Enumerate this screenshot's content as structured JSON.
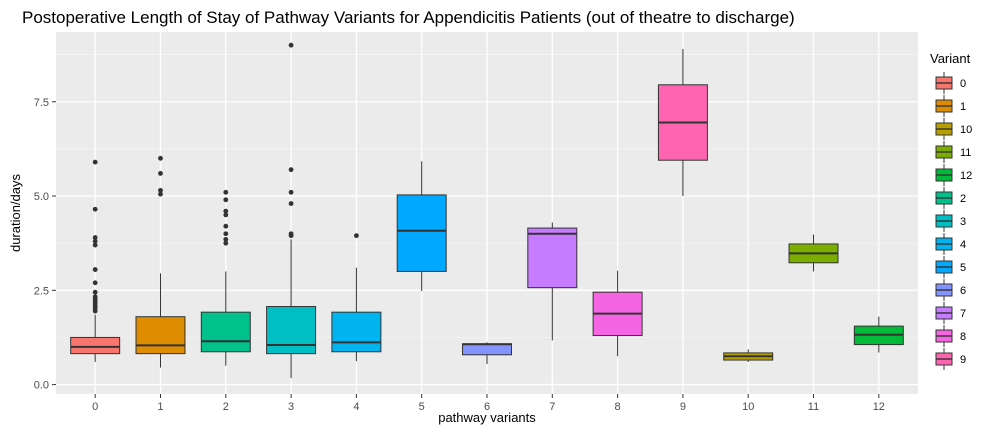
{
  "chart_data": {
    "type": "boxplot",
    "title": "Postoperative Length of Stay of Pathway Variants for Appendicitis Patients (out of theatre to discharge)",
    "xlabel": "pathway variants",
    "ylabel": "duration/days",
    "ylim": [
      -0.25,
      9.35
    ],
    "y_ticks": [
      0.0,
      2.5,
      5.0,
      7.5
    ],
    "y_tick_labels": [
      "0.0",
      "2.5",
      "5.0",
      "7.5"
    ],
    "categories": [
      "0",
      "1",
      "2",
      "3",
      "4",
      "5",
      "6",
      "7",
      "8",
      "9",
      "10",
      "11",
      "12"
    ],
    "grid": true,
    "legend_position": "right",
    "legend": {
      "title": "Variant",
      "entries": [
        {
          "label": "0",
          "color": "#F8766D"
        },
        {
          "label": "1",
          "color": "#DE8C00"
        },
        {
          "label": "10",
          "color": "#B79F00"
        },
        {
          "label": "11",
          "color": "#7CAE00"
        },
        {
          "label": "12",
          "color": "#00BA38"
        },
        {
          "label": "2",
          "color": "#00C08B"
        },
        {
          "label": "3",
          "color": "#00BFC4"
        },
        {
          "label": "4",
          "color": "#00B4F0"
        },
        {
          "label": "5",
          "color": "#00A9FF"
        },
        {
          "label": "6",
          "color": "#8494FF"
        },
        {
          "label": "7",
          "color": "#C77CFF"
        },
        {
          "label": "8",
          "color": "#F564E3"
        },
        {
          "label": "9",
          "color": "#FF64B0"
        }
      ]
    },
    "boxes": [
      {
        "variant": "0",
        "color": "#F8766D",
        "min": 0.6,
        "q1": 0.82,
        "median": 1.0,
        "q3": 1.25,
        "max": 1.85,
        "outliers": [
          1.95,
          2.02,
          2.08,
          2.14,
          2.2,
          2.27,
          2.33,
          2.45,
          2.7,
          3.05,
          3.7,
          3.8,
          3.9,
          4.65,
          5.9
        ]
      },
      {
        "variant": "1",
        "color": "#DE8C00",
        "min": 0.45,
        "q1": 0.82,
        "median": 1.04,
        "q3": 1.8,
        "max": 2.95,
        "outliers": [
          5.05,
          5.15,
          5.6,
          6.0
        ]
      },
      {
        "variant": "2",
        "color": "#00C08B",
        "min": 0.5,
        "q1": 0.87,
        "median": 1.15,
        "q3": 1.92,
        "max": 3.0,
        "outliers": [
          3.75,
          3.85,
          4.0,
          4.2,
          4.5,
          4.6,
          4.9,
          5.1
        ]
      },
      {
        "variant": "3",
        "color": "#00BFC4",
        "min": 0.17,
        "q1": 0.82,
        "median": 1.05,
        "q3": 2.07,
        "max": 3.85,
        "outliers": [
          3.95,
          4.0,
          4.8,
          5.1,
          5.7,
          9.0
        ]
      },
      {
        "variant": "4",
        "color": "#00B4F0",
        "min": 0.62,
        "q1": 0.87,
        "median": 1.12,
        "q3": 1.92,
        "max": 3.1,
        "outliers": [
          3.95
        ]
      },
      {
        "variant": "5",
        "color": "#00A9FF",
        "min": 2.48,
        "q1": 3.0,
        "median": 4.08,
        "q3": 5.03,
        "max": 5.92,
        "outliers": []
      },
      {
        "variant": "6",
        "color": "#8494FF",
        "min": 0.55,
        "q1": 0.79,
        "median": 1.07,
        "q3": 1.08,
        "max": 1.12,
        "outliers": []
      },
      {
        "variant": "7",
        "color": "#C77CFF",
        "min": 1.17,
        "q1": 2.57,
        "median": 4.0,
        "q3": 4.15,
        "max": 4.3,
        "outliers": []
      },
      {
        "variant": "8",
        "color": "#F564E3",
        "min": 0.75,
        "q1": 1.3,
        "median": 1.88,
        "q3": 2.45,
        "max": 3.02,
        "outliers": []
      },
      {
        "variant": "9",
        "color": "#FF64B0",
        "min": 5.0,
        "q1": 5.95,
        "median": 6.95,
        "q3": 7.95,
        "max": 8.9,
        "outliers": []
      },
      {
        "variant": "10",
        "color": "#B79F00",
        "min": 0.6,
        "q1": 0.65,
        "median": 0.75,
        "q3": 0.84,
        "max": 0.93,
        "outliers": []
      },
      {
        "variant": "11",
        "color": "#7CAE00",
        "min": 3.0,
        "q1": 3.23,
        "median": 3.48,
        "q3": 3.73,
        "max": 3.98,
        "outliers": []
      },
      {
        "variant": "12",
        "color": "#00BA38",
        "min": 0.85,
        "q1": 1.06,
        "median": 1.32,
        "q3": 1.55,
        "max": 1.8,
        "outliers": []
      }
    ]
  }
}
